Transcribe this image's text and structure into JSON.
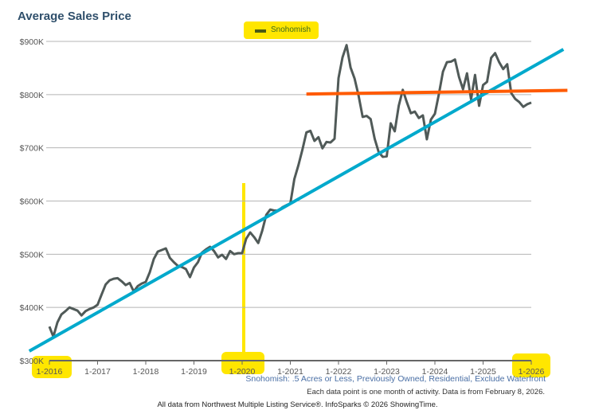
{
  "chart_data": {
    "type": "line",
    "title": "Average Sales Price",
    "subtitle": "Snohomish: .5 Acres or Less, Previously Owned, Residential, Exclude Waterfront",
    "note": "Each data point is one month of activity. Data is from February 8, 2026.",
    "credit": "All data from Northwest Multiple Listing Service®. InfoSparks © 2026 ShowingTime.",
    "legend": {
      "placement": "top-center",
      "entries": [
        "Snohomish"
      ]
    },
    "ylim": [
      300000,
      900000
    ],
    "yticks": [
      "$300K",
      "$400K",
      "$500K",
      "$600K",
      "$700K",
      "$800K",
      "$900K"
    ],
    "xticks": [
      "1-2016",
      "1-2017",
      "1-2018",
      "1-2019",
      "1-2020",
      "1-2021",
      "1-2022",
      "1-2023",
      "1-2024",
      "1-2025",
      "1-2026"
    ],
    "grid": true,
    "series": [
      {
        "name": "Snohomish",
        "color": "#505a58",
        "x": [
          "2016-01",
          "2016-02",
          "2016-03",
          "2016-04",
          "2016-05",
          "2016-06",
          "2016-07",
          "2016-08",
          "2016-09",
          "2016-10",
          "2016-11",
          "2016-12",
          "2017-01",
          "2017-02",
          "2017-03",
          "2017-04",
          "2017-05",
          "2017-06",
          "2017-07",
          "2017-08",
          "2017-09",
          "2017-10",
          "2017-11",
          "2017-12",
          "2018-01",
          "2018-02",
          "2018-03",
          "2018-04",
          "2018-05",
          "2018-06",
          "2018-07",
          "2018-08",
          "2018-09",
          "2018-10",
          "2018-11",
          "2018-12",
          "2019-01",
          "2019-02",
          "2019-03",
          "2019-04",
          "2019-05",
          "2019-06",
          "2019-07",
          "2019-08",
          "2019-09",
          "2019-10",
          "2019-11",
          "2019-12",
          "2020-01",
          "2020-02",
          "2020-03",
          "2020-04",
          "2020-05",
          "2020-06",
          "2020-07",
          "2020-08",
          "2020-09",
          "2020-10",
          "2020-11",
          "2020-12",
          "2021-01",
          "2021-02",
          "2021-03",
          "2021-04",
          "2021-05",
          "2021-06",
          "2021-07",
          "2021-08",
          "2021-09",
          "2021-10",
          "2021-11",
          "2021-12",
          "2022-01",
          "2022-02",
          "2022-03",
          "2022-04",
          "2022-05",
          "2022-06",
          "2022-07",
          "2022-08",
          "2022-09",
          "2022-10",
          "2022-11",
          "2022-12",
          "2023-01",
          "2023-02",
          "2023-03",
          "2023-04",
          "2023-05",
          "2023-06",
          "2023-07",
          "2023-08",
          "2023-09",
          "2023-10",
          "2023-11",
          "2023-12",
          "2024-01",
          "2024-02",
          "2024-03",
          "2024-04",
          "2024-05",
          "2024-06",
          "2024-07",
          "2024-08",
          "2024-09",
          "2024-10",
          "2024-11",
          "2024-12",
          "2025-01",
          "2025-02",
          "2025-03",
          "2025-04",
          "2025-05",
          "2025-06",
          "2025-07",
          "2025-08",
          "2025-09",
          "2025-10",
          "2025-11",
          "2025-12",
          "2026-01"
        ],
        "values": [
          364000,
          345000,
          372000,
          387000,
          393000,
          400000,
          397000,
          394000,
          385000,
          393000,
          397000,
          400000,
          405000,
          424000,
          443000,
          451000,
          454000,
          455000,
          449000,
          442000,
          446000,
          430000,
          440000,
          445000,
          448000,
          466000,
          491000,
          505000,
          508000,
          511000,
          493000,
          485000,
          478000,
          476000,
          472000,
          457000,
          475000,
          485000,
          503000,
          509000,
          514000,
          506000,
          494000,
          499000,
          491000,
          506000,
          500000,
          502000,
          502000,
          529000,
          541000,
          532000,
          521000,
          544000,
          574000,
          584000,
          582000,
          582000,
          588000,
          592000,
          595000,
          641000,
          667000,
          696000,
          729000,
          732000,
          713000,
          720000,
          699000,
          711000,
          710000,
          717000,
          831000,
          870000,
          893000,
          851000,
          830000,
          798000,
          758000,
          760000,
          754000,
          717000,
          692000,
          683000,
          684000,
          746000,
          731000,
          779000,
          809000,
          786000,
          765000,
          768000,
          756000,
          761000,
          716000,
          753000,
          764000,
          801000,
          843000,
          861000,
          862000,
          866000,
          833000,
          810000,
          840000,
          791000,
          837000,
          779000,
          818000,
          824000,
          869000,
          878000,
          861000,
          848000,
          857000,
          803000,
          792000,
          786000,
          777000,
          782000,
          785000
        ]
      }
    ],
    "annotations": [
      {
        "type": "trend-line",
        "color": "#00a9cc",
        "from": [
          "2015-08",
          318000
        ],
        "to": [
          "2026-09",
          885000
        ]
      },
      {
        "type": "trend-line",
        "color": "#ff5a00",
        "from": [
          "2021-05",
          801000
        ],
        "to": [
          "2026-10",
          808000
        ]
      },
      {
        "type": "highlight-vertical-line",
        "color": "#ffe600",
        "at": "2020-01"
      },
      {
        "type": "highlight",
        "color": "#ffe600",
        "targets": [
          "1-2016",
          "1-2020",
          "1-2026",
          "Snohomish"
        ]
      }
    ]
  }
}
